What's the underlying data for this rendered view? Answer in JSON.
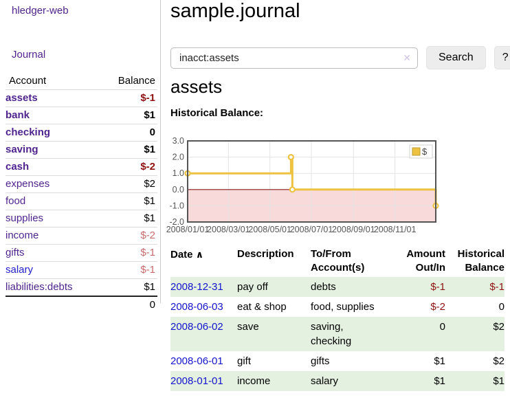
{
  "app": {
    "title": "hledger-web"
  },
  "colors": {
    "purple_link": "#50248f",
    "blue_link": "#2121cc",
    "negative_strong": "#8f1212",
    "negative_soft": "#c96b6b",
    "date_link": "#1414cc",
    "row_green": "#e4f1e1"
  },
  "sidebar": {
    "journal_link": "Journal",
    "accounts": {
      "header_account": "Account",
      "header_balance": "Balance",
      "rows": [
        {
          "name": "assets",
          "balance": "$-1",
          "level": 1,
          "bold": true,
          "neg": "strong"
        },
        {
          "name": "bank",
          "balance": "$1",
          "level": 2,
          "bold": true,
          "neg": ""
        },
        {
          "name": "checking",
          "balance": "0",
          "level": 3,
          "bold": true,
          "neg": ""
        },
        {
          "name": "saving",
          "balance": "$1",
          "level": 3,
          "bold": true,
          "neg": ""
        },
        {
          "name": "cash",
          "balance": "$-2",
          "level": 2,
          "bold": true,
          "neg": "strong"
        },
        {
          "name": "expenses",
          "balance": "$2",
          "level": 1,
          "bold": false,
          "neg": ""
        },
        {
          "name": "food",
          "balance": "$1",
          "level": 2,
          "bold": false,
          "neg": ""
        },
        {
          "name": "supplies",
          "balance": "$1",
          "level": 2,
          "bold": false,
          "neg": ""
        },
        {
          "name": "income",
          "balance": "$-2",
          "level": 1,
          "bold": false,
          "neg": "soft"
        },
        {
          "name": "gifts",
          "balance": "$-1",
          "level": 2,
          "bold": false,
          "neg": "soft"
        },
        {
          "name": "salary",
          "balance": "$-1",
          "level": 2,
          "bold": false,
          "neg": "soft",
          "link_color": "blue"
        },
        {
          "name": "liabilities:debts",
          "balance": "$1",
          "level": 1,
          "bold": false,
          "neg": ""
        }
      ],
      "total": "0"
    }
  },
  "main": {
    "page_title": "sample.journal",
    "search": {
      "value": "inacct:assets",
      "clear_icon": "✕",
      "search_button": "Search",
      "help_button": "?"
    },
    "account_heading": "assets",
    "chart_label": "Historical Balance:"
  },
  "chart_data": {
    "type": "line",
    "step": true,
    "title": "Historical Balance",
    "legend": "$",
    "legend_position": "top-right",
    "series": [
      {
        "name": "$",
        "color": "#edc240",
        "points": [
          [
            "2008-01-01",
            1
          ],
          [
            "2008-06-01",
            2
          ],
          [
            "2008-06-03",
            0
          ],
          [
            "2008-12-31",
            -1
          ]
        ]
      }
    ],
    "x_range": [
      "2008-01-01",
      "2008-12-31"
    ],
    "ylim": [
      -2,
      3
    ],
    "yticks": [
      {
        "value": 3,
        "label": "3.0"
      },
      {
        "value": 2,
        "label": "2.0"
      },
      {
        "value": 1,
        "label": "1.0"
      },
      {
        "value": 0,
        "label": "0.0"
      },
      {
        "value": -1,
        "label": "-1.0"
      },
      {
        "value": -2,
        "label": "-2.0"
      }
    ],
    "xticks": [
      {
        "date": "2008-01-01",
        "label": "2008/01/01"
      },
      {
        "date": "2008-03-01",
        "label": "2008/03/01"
      },
      {
        "date": "2008-05-01",
        "label": "2008/05/01"
      },
      {
        "date": "2008-07-01",
        "label": "2008/07/01"
      },
      {
        "date": "2008-09-01",
        "label": "2008/09/01"
      },
      {
        "date": "2008-11-01",
        "label": "2008/11/01"
      }
    ],
    "grid": true,
    "grid_color": "#e3e3e3",
    "border_color": "#545454",
    "zero_line_color": "#871919",
    "negative_fill": "#f9dada",
    "marker": {
      "shape": "circle",
      "fill": "#ffffff"
    }
  },
  "register_table": {
    "headers": {
      "date": "Date",
      "sort_icon": "∧",
      "description": "Description",
      "tofrom": "To/From Account(s)",
      "amount": "Amount Out/In",
      "balance": "Historical Balance"
    },
    "rows": [
      {
        "date": "2008-12-31",
        "description": "pay off",
        "accounts": "debts",
        "amount": "$-1",
        "amount_neg": true,
        "balance": "$-1",
        "balance_neg": true
      },
      {
        "date": "2008-06-03",
        "description": "eat & shop",
        "accounts": "food, supplies",
        "amount": "$-2",
        "amount_neg": true,
        "balance": "0",
        "balance_neg": false
      },
      {
        "date": "2008-06-02",
        "description": "save",
        "accounts": "saving, checking",
        "amount": "0",
        "amount_neg": false,
        "balance": "$2",
        "balance_neg": false
      },
      {
        "date": "2008-06-01",
        "description": "gift",
        "accounts": "gifts",
        "amount": "$1",
        "amount_neg": false,
        "balance": "$2",
        "balance_neg": false
      },
      {
        "date": "2008-01-01",
        "description": "income",
        "accounts": "salary",
        "amount": "$1",
        "amount_neg": false,
        "balance": "$1",
        "balance_neg": false
      }
    ]
  }
}
